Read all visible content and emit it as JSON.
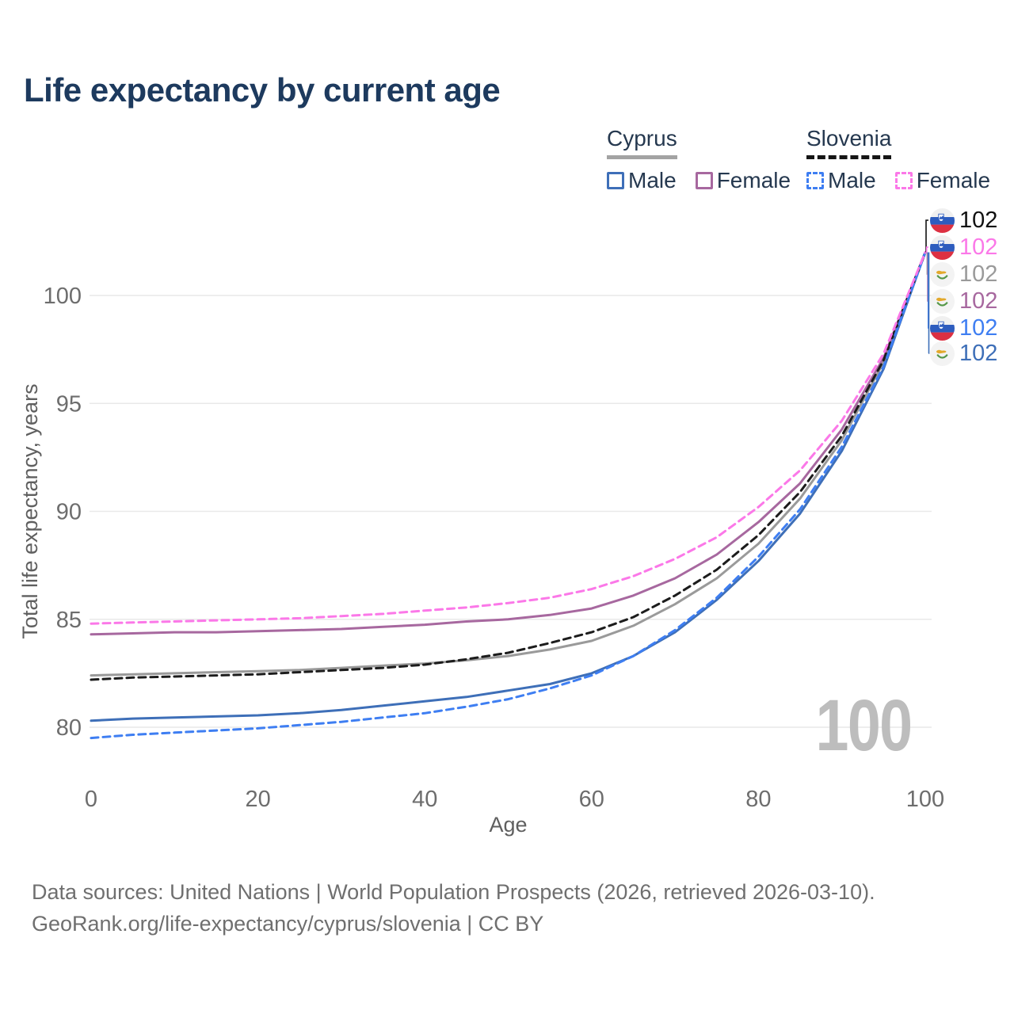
{
  "title": "Life expectancy by current age",
  "watermark": "100",
  "legend": {
    "groups": [
      {
        "country": "Cyprus",
        "line_style": "solid",
        "underline_color": "#a3a3a3",
        "items": [
          {
            "label": "Male",
            "color": "#3e6fb8"
          },
          {
            "label": "Female",
            "color": "#a7689f"
          }
        ]
      },
      {
        "country": "Slovenia",
        "line_style": "dashed",
        "underline_color": "#151515",
        "items": [
          {
            "label": "Male",
            "color": "#3e7ef2"
          },
          {
            "label": "Female",
            "color": "#fb78e8"
          }
        ]
      }
    ]
  },
  "end_labels": [
    {
      "series": "Slovenia Total",
      "flag": "slovenia",
      "value": "102",
      "color": "#111111"
    },
    {
      "series": "Slovenia Female",
      "flag": "slovenia",
      "value": "102",
      "color": "#fb78e8"
    },
    {
      "series": "Cyprus Total",
      "flag": "cyprus",
      "value": "102",
      "color": "#9a9a9a"
    },
    {
      "series": "Cyprus Female",
      "flag": "cyprus",
      "value": "102",
      "color": "#a7689f"
    },
    {
      "series": "Slovenia Male",
      "flag": "slovenia",
      "value": "102",
      "color": "#3e7ef2"
    },
    {
      "series": "Cyprus Male",
      "flag": "cyprus",
      "value": "102",
      "color": "#3e6fb8"
    }
  ],
  "footer": {
    "line1": "Data sources: United Nations | World Population Prospects (2026, retrieved 2026-03-10).",
    "line2": "GeoRank.org/life-expectancy/cyprus/slovenia | CC BY"
  },
  "chart_data": {
    "type": "line",
    "title": "Life expectancy by current age",
    "xlabel": "Age",
    "ylabel": "Total life expectancy, years",
    "x": [
      0,
      5,
      10,
      15,
      20,
      25,
      30,
      35,
      40,
      45,
      50,
      55,
      60,
      65,
      70,
      75,
      80,
      85,
      90,
      95,
      100
    ],
    "xticks": [
      0,
      20,
      40,
      60,
      80,
      100
    ],
    "yticks": [
      80,
      85,
      90,
      95,
      100
    ],
    "xlim": [
      0,
      100
    ],
    "ylim": [
      79,
      103
    ],
    "grid": "horizontal",
    "legend_position": "top-right",
    "series": [
      {
        "name": "Cyprus Total",
        "country": "Cyprus",
        "sex": "total",
        "color": "#9a9a9a",
        "dash": "solid",
        "values": [
          82.4,
          82.45,
          82.5,
          82.55,
          82.6,
          82.65,
          82.75,
          82.85,
          82.95,
          83.1,
          83.3,
          83.6,
          84.0,
          84.7,
          85.7,
          86.9,
          88.5,
          90.6,
          93.3,
          96.9,
          102
        ]
      },
      {
        "name": "Cyprus Male",
        "country": "Cyprus",
        "sex": "male",
        "color": "#3e6fb8",
        "dash": "solid",
        "values": [
          80.3,
          80.4,
          80.45,
          80.5,
          80.55,
          80.65,
          80.8,
          81.0,
          81.2,
          81.4,
          81.7,
          82.0,
          82.5,
          83.3,
          84.4,
          85.9,
          87.7,
          89.9,
          92.8,
          96.6,
          102
        ]
      },
      {
        "name": "Cyprus Female",
        "country": "Cyprus",
        "sex": "female",
        "color": "#a7689f",
        "dash": "solid",
        "values": [
          84.3,
          84.35,
          84.4,
          84.4,
          84.45,
          84.5,
          84.55,
          84.65,
          84.75,
          84.9,
          85.0,
          85.2,
          85.5,
          86.1,
          86.9,
          88.0,
          89.5,
          91.3,
          93.8,
          97.1,
          102
        ]
      },
      {
        "name": "Slovenia Total",
        "country": "Slovenia",
        "sex": "total",
        "color": "#1c1c1c",
        "dash": "dashed",
        "values": [
          82.2,
          82.3,
          82.35,
          82.4,
          82.45,
          82.55,
          82.65,
          82.75,
          82.9,
          83.15,
          83.45,
          83.9,
          84.4,
          85.1,
          86.1,
          87.3,
          88.9,
          90.9,
          93.5,
          97.0,
          102
        ]
      },
      {
        "name": "Slovenia Male",
        "country": "Slovenia",
        "sex": "male",
        "color": "#3e7ef2",
        "dash": "dashed",
        "values": [
          79.5,
          79.65,
          79.75,
          79.85,
          79.95,
          80.1,
          80.25,
          80.45,
          80.65,
          80.95,
          81.3,
          81.8,
          82.4,
          83.3,
          84.5,
          86.0,
          87.9,
          90.1,
          93.0,
          96.7,
          102
        ]
      },
      {
        "name": "Slovenia Female",
        "country": "Slovenia",
        "sex": "female",
        "color": "#fb78e8",
        "dash": "dashed",
        "values": [
          84.8,
          84.85,
          84.9,
          84.95,
          85.0,
          85.05,
          85.15,
          85.25,
          85.4,
          85.55,
          85.75,
          86.0,
          86.4,
          87.0,
          87.8,
          88.8,
          90.2,
          91.9,
          94.2,
          97.3,
          102
        ]
      }
    ]
  }
}
